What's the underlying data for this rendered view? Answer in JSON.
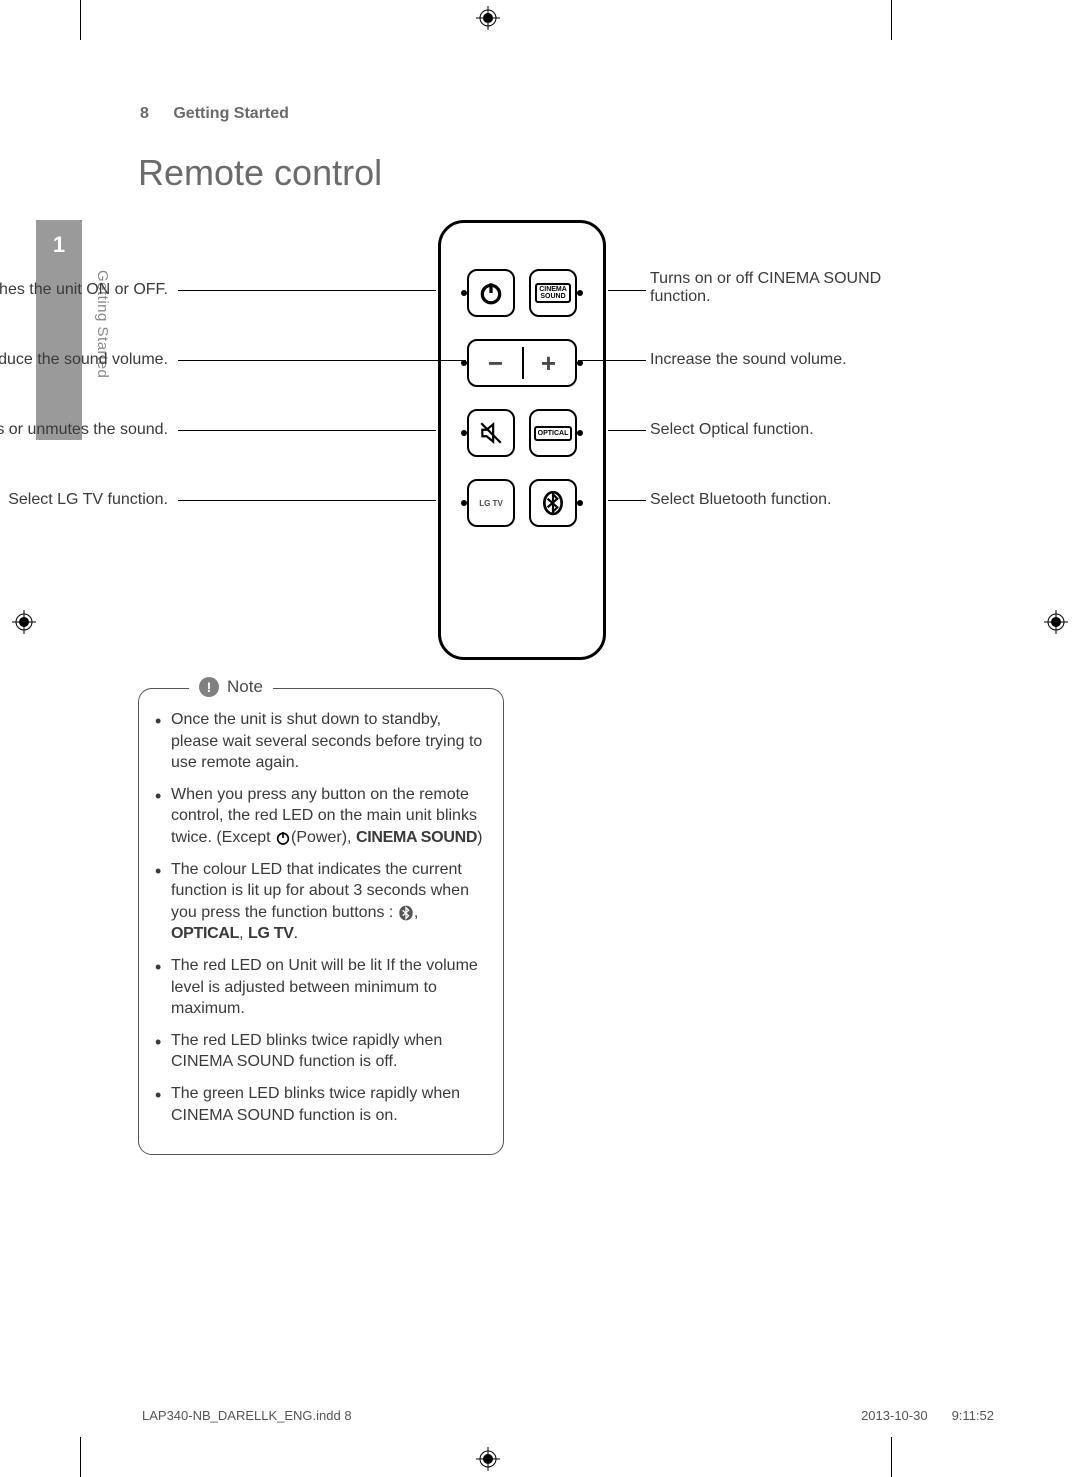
{
  "page": {
    "number": "8",
    "section": "Getting Started",
    "title": "Remote control",
    "chapter_number": "1",
    "side_label": "Getting Started"
  },
  "remote": {
    "rows": [
      {
        "left": {
          "kind": "power"
        },
        "right": {
          "kind": "text2",
          "line1": "CINEMA",
          "line2": "SOUND"
        },
        "lead_left": "Switches the unit ON or OFF.",
        "lead_right": "Turns on or off CINEMA SOUND function."
      },
      {
        "wide": true,
        "left_sym": "−",
        "right_sym": "+",
        "lead_left": "Reduce the sound volume.",
        "lead_right": "Increase the sound volume."
      },
      {
        "left": {
          "kind": "mute"
        },
        "right": {
          "kind": "text1",
          "line1": "OPTICAL"
        },
        "lead_left": "Mutes or unmutes the sound.",
        "lead_right": "Select Optical function."
      },
      {
        "left": {
          "kind": "text1",
          "line1": "LG TV"
        },
        "right": {
          "kind": "bluetooth"
        },
        "lead_left": "Select LG TV function.",
        "lead_right": "Select Bluetooth function."
      }
    ]
  },
  "note": {
    "title": "Note",
    "items": [
      {
        "html": "Once the unit is shut down to standby, please wait several seconds before trying to use remote again."
      },
      {
        "html": "When you press any button on the remote control, the red LED on the main unit blinks twice. (Except {POWER}(Power), <b>CINEMA SOUND</b>)"
      },
      {
        "html": "The colour LED that indicates the current function is lit up for about 3 seconds when you press the function buttons : {BT}, <b>OPTICAL</b>, <b>LG TV</b>."
      },
      {
        "html": "The red LED on Unit will be lit If the volume level is adjusted between minimum to maximum."
      },
      {
        "html": "The red LED blinks twice rapidly when CINEMA SOUND function is off."
      },
      {
        "html": "The green LED blinks twice rapidly when CINEMA SOUND function is on."
      }
    ]
  },
  "footer": {
    "file": "LAP340-NB_DARELLK_ENG.indd   8",
    "date": "2013-10-30",
    "time": "9:11:52"
  },
  "colors": {
    "text": "#3a3a3a",
    "muted": "#6b6b6b",
    "tab_bg": "#9a9a9a"
  }
}
